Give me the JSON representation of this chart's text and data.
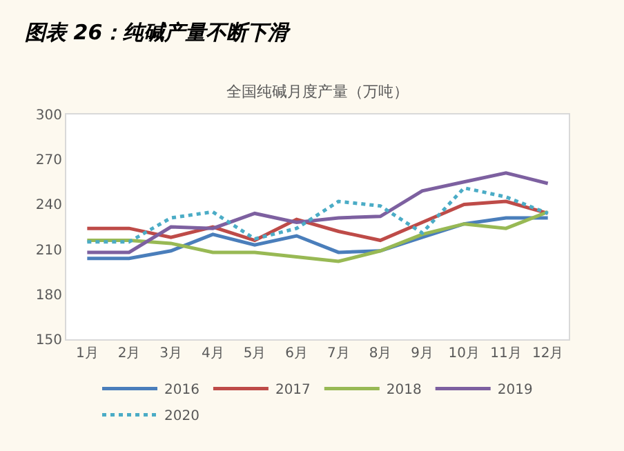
{
  "chart_data": {
    "type": "line",
    "title": "图表 26：纯碱产量不断下滑",
    "subtitle": "全国纯碱月度产量（万吨）",
    "categories": [
      "1月",
      "2月",
      "3月",
      "4月",
      "5月",
      "6月",
      "7月",
      "8月",
      "9月",
      "10月",
      "11月",
      "12月"
    ],
    "series": [
      {
        "name": "2016",
        "color": "#4a7ebb",
        "values": [
          204,
          204,
          209,
          220,
          213,
          219,
          208,
          209,
          218,
          227,
          231,
          231
        ]
      },
      {
        "name": "2017",
        "color": "#be4b48",
        "values": [
          224,
          224,
          218,
          225,
          216,
          230,
          222,
          216,
          228,
          240,
          242,
          234
        ]
      },
      {
        "name": "2018",
        "color": "#98b954",
        "values": [
          216,
          216,
          214,
          208,
          208,
          205,
          202,
          209,
          220,
          227,
          224,
          235
        ]
      },
      {
        "name": "2019",
        "color": "#7d60a0",
        "values": [
          208,
          208,
          225,
          224,
          234,
          228,
          231,
          232,
          249,
          255,
          261,
          254
        ]
      },
      {
        "name": "2020",
        "color": "#4bacc6",
        "line_style": "dotted",
        "values": [
          215,
          215,
          231,
          235,
          217,
          224,
          242,
          239,
          221,
          251,
          245,
          234
        ]
      }
    ],
    "ylim": [
      150,
      300
    ],
    "yticks": [
      150,
      180,
      210,
      240,
      270,
      300
    ],
    "grid": false,
    "legend": "bottom",
    "marker": "none",
    "line_style": "solid"
  }
}
